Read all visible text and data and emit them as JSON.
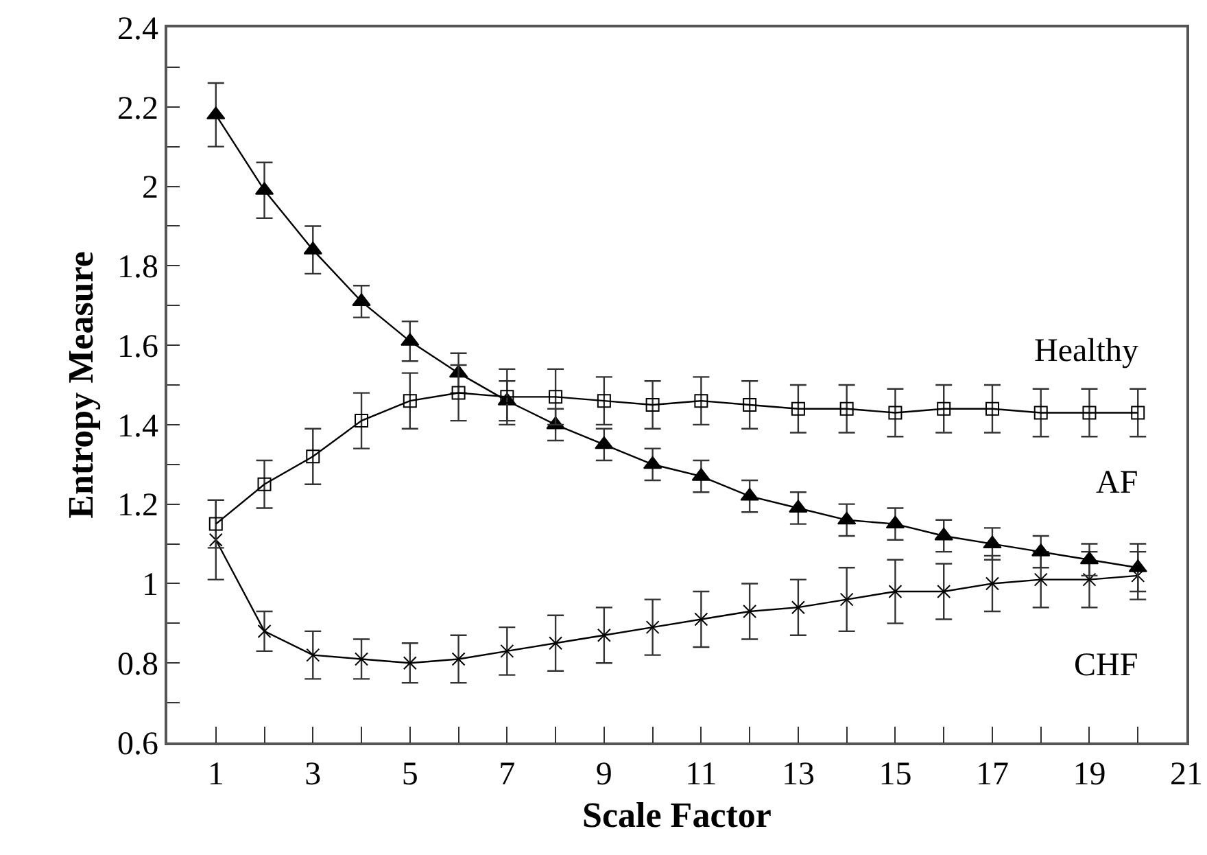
{
  "chart_data": {
    "type": "line",
    "xlabel": "Scale Factor",
    "ylabel": "Entropy Measure",
    "x": [
      1,
      2,
      3,
      4,
      5,
      6,
      7,
      8,
      9,
      10,
      11,
      12,
      13,
      14,
      15,
      16,
      17,
      18,
      19,
      20
    ],
    "series": [
      {
        "name": "Healthy",
        "color": "#000000",
        "marker": "square",
        "values": [
          1.15,
          1.25,
          1.32,
          1.41,
          1.46,
          1.48,
          1.47,
          1.47,
          1.46,
          1.45,
          1.46,
          1.45,
          1.44,
          1.44,
          1.43,
          1.44,
          1.44,
          1.43,
          1.43,
          1.43
        ],
        "errors": [
          0.06,
          0.06,
          0.07,
          0.07,
          0.07,
          0.07,
          0.07,
          0.07,
          0.06,
          0.06,
          0.06,
          0.06,
          0.06,
          0.06,
          0.06,
          0.06,
          0.06,
          0.06,
          0.06,
          0.06
        ]
      },
      {
        "name": "AF",
        "color": "#000000",
        "marker": "triangle",
        "values": [
          2.18,
          1.99,
          1.84,
          1.71,
          1.61,
          1.53,
          1.46,
          1.4,
          1.35,
          1.3,
          1.27,
          1.22,
          1.19,
          1.16,
          1.15,
          1.12,
          1.1,
          1.08,
          1.06,
          1.04
        ],
        "errors": [
          0.08,
          0.07,
          0.06,
          0.04,
          0.05,
          0.05,
          0.05,
          0.04,
          0.04,
          0.04,
          0.04,
          0.04,
          0.04,
          0.04,
          0.04,
          0.04,
          0.04,
          0.04,
          0.04,
          0.06
        ]
      },
      {
        "name": "CHF",
        "color": "#000000",
        "marker": "cross",
        "values": [
          1.11,
          0.88,
          0.82,
          0.81,
          0.8,
          0.81,
          0.83,
          0.85,
          0.87,
          0.89,
          0.91,
          0.93,
          0.94,
          0.96,
          0.98,
          0.98,
          1.0,
          1.01,
          1.01,
          1.02
        ],
        "errors": [
          0.1,
          0.05,
          0.06,
          0.05,
          0.05,
          0.06,
          0.06,
          0.07,
          0.07,
          0.07,
          0.07,
          0.07,
          0.07,
          0.08,
          0.08,
          0.07,
          0.07,
          0.07,
          0.07,
          0.06
        ]
      }
    ],
    "xlim": [
      0,
      21
    ],
    "xticks": [
      {
        "value": 0,
        "label": null
      },
      1,
      {
        "value": 2,
        "label": null
      },
      3,
      {
        "value": 4,
        "label": null
      },
      5,
      {
        "value": 6,
        "label": null
      },
      7,
      {
        "value": 8,
        "label": null
      },
      9,
      {
        "value": 10,
        "label": null
      },
      11,
      {
        "value": 12,
        "label": null
      },
      13,
      {
        "value": 14,
        "label": null
      },
      15,
      {
        "value": 16,
        "label": null
      },
      17,
      {
        "value": 18,
        "label": null
      },
      19,
      {
        "value": 20,
        "label": null
      },
      21
    ],
    "ylim": [
      0.6,
      2.4
    ],
    "yticks": [
      0.6,
      {
        "value": 0.7,
        "label": null
      },
      0.8,
      {
        "value": 0.9,
        "label": null
      },
      1,
      {
        "value": 1.1,
        "label": null
      },
      1.2,
      {
        "value": 1.3,
        "label": null
      },
      1.4,
      {
        "value": 1.5,
        "label": null
      },
      1.6,
      {
        "value": 1.7,
        "label": null
      },
      1.8,
      {
        "value": 1.9,
        "label": null
      },
      2,
      {
        "value": 2.1,
        "label": null
      },
      2.2,
      {
        "value": 2.3,
        "label": null
      },
      2.4
    ],
    "grid": false,
    "legend": false,
    "line_style": "solid"
  }
}
